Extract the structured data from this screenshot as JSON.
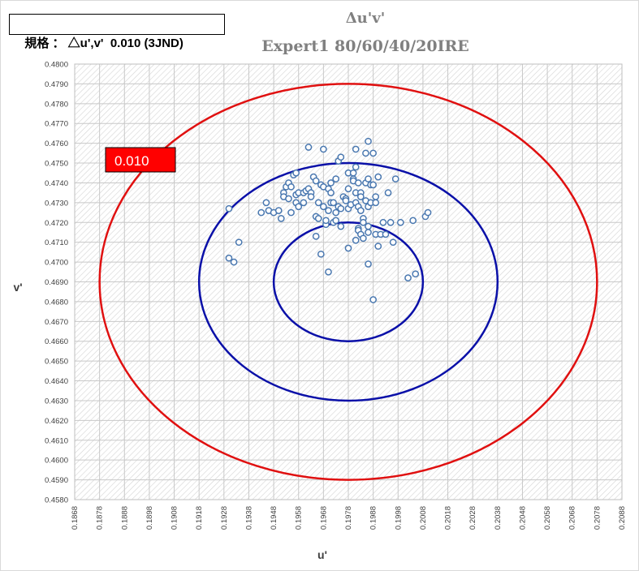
{
  "spec_label": "規格 ： △u',v'  0.010 (3JND)",
  "title_line1": "Δu'v'",
  "title_line2": "Expert1  80/60/40/20IRE",
  "callout_label": "0.010",
  "colors": {
    "red_ring": "#e01010",
    "blue_ring": "#0a10a8",
    "points": "#4a78b0",
    "callout_fill": "#ff0000"
  },
  "chart_data": {
    "type": "scatter",
    "xlabel": "u'",
    "ylabel": "v'",
    "xlim": [
      0.1868,
      0.2088
    ],
    "ylim": [
      0.458,
      0.48
    ],
    "x_ticks": [
      "0.1868",
      "0.1878",
      "0.1888",
      "0.1898",
      "0.1908",
      "0.1918",
      "0.1928",
      "0.1938",
      "0.1948",
      "0.1958",
      "0.1968",
      "0.1978",
      "0.1988",
      "0.1998",
      "0.2008",
      "0.2018",
      "0.2028",
      "0.2038",
      "0.2048",
      "0.2058",
      "0.2068",
      "0.2078",
      "0.2088"
    ],
    "y_ticks": [
      "0.4580",
      "0.4590",
      "0.4600",
      "0.4610",
      "0.4620",
      "0.4630",
      "0.4640",
      "0.4650",
      "0.4660",
      "0.4670",
      "0.4680",
      "0.4690",
      "0.4700",
      "0.4710",
      "0.4720",
      "0.4730",
      "0.4740",
      "0.4750",
      "0.4760",
      "0.4770",
      "0.4780",
      "0.4790",
      "0.4800"
    ],
    "grid": true,
    "center": [
      0.1978,
      0.469
    ],
    "rings": [
      {
        "radius": 0.003,
        "color": "blue"
      },
      {
        "radius": 0.006,
        "color": "blue"
      },
      {
        "radius": 0.01,
        "color": "red"
      }
    ],
    "points": [
      [
        0.193,
        0.4727
      ],
      [
        0.193,
        0.4702
      ],
      [
        0.1932,
        0.47
      ],
      [
        0.1934,
        0.471
      ],
      [
        0.1943,
        0.4725
      ],
      [
        0.1945,
        0.473
      ],
      [
        0.1946,
        0.4726
      ],
      [
        0.1948,
        0.4725
      ],
      [
        0.195,
        0.4726
      ],
      [
        0.1951,
        0.4722
      ],
      [
        0.1952,
        0.4735
      ],
      [
        0.1953,
        0.4738
      ],
      [
        0.1952,
        0.4733
      ],
      [
        0.1954,
        0.4732
      ],
      [
        0.1954,
        0.474
      ],
      [
        0.1955,
        0.4738
      ],
      [
        0.1956,
        0.4744
      ],
      [
        0.1957,
        0.4745
      ],
      [
        0.1955,
        0.4725
      ],
      [
        0.1957,
        0.473
      ],
      [
        0.1958,
        0.4728
      ],
      [
        0.1957,
        0.4734
      ],
      [
        0.1958,
        0.4735
      ],
      [
        0.196,
        0.4735
      ],
      [
        0.196,
        0.473
      ],
      [
        0.1961,
        0.4736
      ],
      [
        0.1962,
        0.4737
      ],
      [
        0.1963,
        0.4735
      ],
      [
        0.1962,
        0.4758
      ],
      [
        0.1963,
        0.4733
      ],
      [
        0.1964,
        0.4743
      ],
      [
        0.1965,
        0.4741
      ],
      [
        0.1965,
        0.4723
      ],
      [
        0.1966,
        0.4722
      ],
      [
        0.1965,
        0.4713
      ],
      [
        0.1966,
        0.473
      ],
      [
        0.1967,
        0.4739
      ],
      [
        0.1967,
        0.4704
      ],
      [
        0.1968,
        0.4738
      ],
      [
        0.1968,
        0.4757
      ],
      [
        0.1968,
        0.4728
      ],
      [
        0.1969,
        0.4719
      ],
      [
        0.1969,
        0.4721
      ],
      [
        0.197,
        0.4695
      ],
      [
        0.197,
        0.4737
      ],
      [
        0.197,
        0.4726
      ],
      [
        0.1971,
        0.473
      ],
      [
        0.1971,
        0.474
      ],
      [
        0.1971,
        0.4735
      ],
      [
        0.1972,
        0.472
      ],
      [
        0.1972,
        0.473
      ],
      [
        0.1973,
        0.4721
      ],
      [
        0.1973,
        0.4725
      ],
      [
        0.1973,
        0.4742
      ],
      [
        0.1974,
        0.4751
      ],
      [
        0.1974,
        0.4728
      ],
      [
        0.1975,
        0.4753
      ],
      [
        0.1975,
        0.4718
      ],
      [
        0.1975,
        0.4727
      ],
      [
        0.1976,
        0.4733
      ],
      [
        0.1977,
        0.4732
      ],
      [
        0.1977,
        0.4731
      ],
      [
        0.1978,
        0.4745
      ],
      [
        0.1978,
        0.4737
      ],
      [
        0.1978,
        0.4707
      ],
      [
        0.1978,
        0.4727
      ],
      [
        0.1979,
        0.4729
      ],
      [
        0.198,
        0.4742
      ],
      [
        0.198,
        0.4745
      ],
      [
        0.198,
        0.4741
      ],
      [
        0.1981,
        0.4748
      ],
      [
        0.1981,
        0.473
      ],
      [
        0.1981,
        0.4757
      ],
      [
        0.1981,
        0.4735
      ],
      [
        0.1981,
        0.4711
      ],
      [
        0.1982,
        0.474
      ],
      [
        0.1982,
        0.4717
      ],
      [
        0.1982,
        0.4716
      ],
      [
        0.1982,
        0.4728
      ],
      [
        0.1983,
        0.4735
      ],
      [
        0.1983,
        0.4714
      ],
      [
        0.1983,
        0.4733
      ],
      [
        0.1983,
        0.4726
      ],
      [
        0.1984,
        0.4712
      ],
      [
        0.1984,
        0.4722
      ],
      [
        0.1984,
        0.472
      ],
      [
        0.1985,
        0.4731
      ],
      [
        0.1985,
        0.474
      ],
      [
        0.1985,
        0.4755
      ],
      [
        0.1986,
        0.4742
      ],
      [
        0.1986,
        0.4718
      ],
      [
        0.1986,
        0.4761
      ],
      [
        0.1986,
        0.4715
      ],
      [
        0.1986,
        0.4728
      ],
      [
        0.1986,
        0.4699
      ],
      [
        0.1987,
        0.473
      ],
      [
        0.1987,
        0.4739
      ],
      [
        0.1988,
        0.4755
      ],
      [
        0.1988,
        0.4681
      ],
      [
        0.1988,
        0.4739
      ],
      [
        0.1989,
        0.4714
      ],
      [
        0.1989,
        0.4733
      ],
      [
        0.1989,
        0.473
      ],
      [
        0.199,
        0.4743
      ],
      [
        0.199,
        0.4708
      ],
      [
        0.1991,
        0.4714
      ],
      [
        0.1992,
        0.472
      ],
      [
        0.1993,
        0.4714
      ],
      [
        0.1994,
        0.4735
      ],
      [
        0.1995,
        0.472
      ],
      [
        0.1996,
        0.471
      ],
      [
        0.1997,
        0.4742
      ],
      [
        0.1999,
        0.472
      ],
      [
        0.2002,
        0.4692
      ],
      [
        0.2004,
        0.4721
      ],
      [
        0.2005,
        0.4694
      ],
      [
        0.2009,
        0.4723
      ],
      [
        0.201,
        0.4725
      ]
    ]
  }
}
